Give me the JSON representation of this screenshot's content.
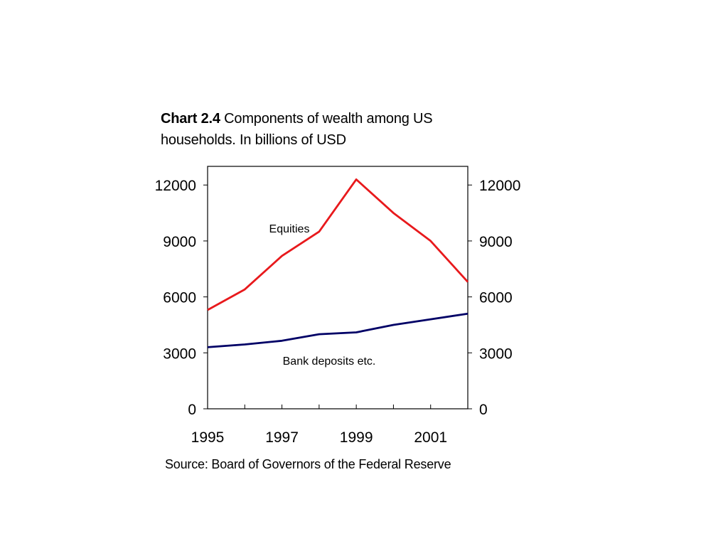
{
  "chart_data": {
    "type": "line",
    "title_bold": "Chart 2.4",
    "title": "Components of wealth among US households. In billions of USD",
    "xlabel": "",
    "ylabel": "",
    "x": [
      1995,
      1996,
      1997,
      1998,
      1999,
      2000,
      2001,
      2002
    ],
    "x_tick_labels": [
      "1995",
      "1997",
      "1999",
      "2001"
    ],
    "x_tick_values": [
      1995,
      1997,
      1999,
      2001
    ],
    "xlim": [
      1995,
      2002
    ],
    "ylim": [
      0,
      13000
    ],
    "y_ticks": [
      0,
      3000,
      6000,
      9000,
      12000
    ],
    "y_tick_labels": [
      "0",
      "3000",
      "6000",
      "9000",
      "12000"
    ],
    "secondary_y_axis": true,
    "grid": false,
    "legend": "none",
    "series": [
      {
        "name": "Equities",
        "color": "#e8191c",
        "values": [
          5300,
          6400,
          8200,
          9500,
          12300,
          10500,
          9000,
          6800
        ]
      },
      {
        "name": "Bank deposits etc.",
        "color": "#000066",
        "values": [
          3300,
          3450,
          3650,
          4000,
          4100,
          4500,
          4800,
          5100
        ]
      }
    ],
    "source": "Source: Board of Governors of the Federal Reserve"
  }
}
